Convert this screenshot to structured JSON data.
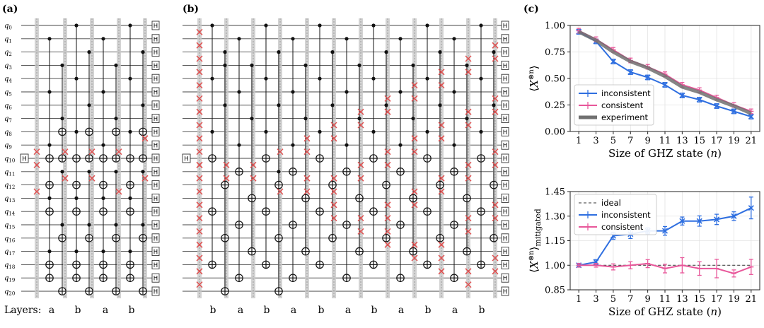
{
  "panels": {
    "a_label": "(a)",
    "b_label": "(b)",
    "c_label": "(c)"
  },
  "qubit_labels": [
    "q0",
    "q1",
    "q2",
    "q3",
    "q4",
    "q5",
    "q6",
    "q7",
    "q8",
    "q9",
    "q10",
    "q11",
    "q12",
    "q13",
    "q14",
    "q15",
    "q16",
    "q17",
    "q18",
    "q19",
    "q20"
  ],
  "gate_H": "H",
  "layers_label": "Layers:",
  "circuit_a": {
    "layers": [
      "a",
      "b",
      "a",
      "b"
    ],
    "cnots": [
      [
        [
          1,
          10
        ],
        [
          3,
          8
        ],
        [
          5,
          12
        ],
        [
          7,
          10
        ],
        [
          9,
          14
        ],
        [
          11,
          16
        ],
        [
          13,
          18
        ],
        [
          15,
          20
        ],
        [
          17,
          19
        ]
      ],
      [
        [
          0,
          10
        ],
        [
          2,
          8
        ],
        [
          4,
          12
        ],
        [
          6,
          10
        ],
        [
          8,
          14
        ],
        [
          11,
          16
        ],
        [
          13,
          18
        ],
        [
          15,
          20
        ],
        [
          17,
          19
        ]
      ],
      [
        [
          1,
          10
        ],
        [
          3,
          8
        ],
        [
          5,
          12
        ],
        [
          7,
          10
        ],
        [
          9,
          14
        ],
        [
          11,
          16
        ],
        [
          13,
          18
        ],
        [
          15,
          20
        ],
        [
          17,
          19
        ]
      ],
      [
        [
          0,
          10
        ],
        [
          2,
          8
        ],
        [
          4,
          12
        ],
        [
          6,
          10
        ],
        [
          8,
          14
        ],
        [
          11,
          16
        ],
        [
          13,
          18
        ],
        [
          15,
          20
        ],
        [
          17,
          19
        ]
      ]
    ],
    "swaps": [
      [
        10
      ],
      [
        9,
        11
      ],
      [
        9,
        11
      ],
      [
        9,
        12
      ],
      [
        8,
        11
      ],
      [
        9,
        12
      ]
    ]
  },
  "circuit_b": {
    "layers": [
      "b",
      "a",
      "b",
      "a",
      "b",
      "a",
      "b",
      "a",
      "b",
      "a",
      "b"
    ],
    "cnots": [
      [
        [
          0,
          10
        ],
        [
          2,
          12
        ],
        [
          4,
          14
        ],
        [
          6,
          16
        ],
        [
          8,
          18
        ],
        [
          3,
          20
        ]
      ],
      [
        [
          1,
          11
        ],
        [
          3,
          13
        ],
        [
          5,
          15
        ],
        [
          7,
          17
        ],
        [
          9,
          19
        ]
      ],
      [
        [
          0,
          10
        ],
        [
          2,
          12
        ],
        [
          4,
          14
        ],
        [
          6,
          16
        ],
        [
          8,
          18
        ],
        [
          11,
          20
        ]
      ],
      [
        [
          1,
          11
        ],
        [
          3,
          13
        ],
        [
          5,
          15
        ],
        [
          7,
          17
        ],
        [
          9,
          19
        ]
      ],
      [
        [
          0,
          10
        ],
        [
          2,
          12
        ],
        [
          4,
          14
        ],
        [
          6,
          16
        ],
        [
          8,
          18
        ]
      ],
      [
        [
          1,
          11
        ],
        [
          3,
          13
        ],
        [
          5,
          15
        ],
        [
          7,
          17
        ],
        [
          9,
          19
        ]
      ],
      [
        [
          0,
          10
        ],
        [
          2,
          12
        ],
        [
          4,
          14
        ],
        [
          6,
          16
        ],
        [
          8,
          18
        ]
      ],
      [
        [
          1,
          11
        ],
        [
          3,
          13
        ],
        [
          5,
          15
        ],
        [
          7,
          17
        ],
        [
          9,
          19
        ]
      ],
      [
        [
          0,
          10
        ],
        [
          2,
          12
        ],
        [
          4,
          14
        ],
        [
          6,
          16
        ],
        [
          8,
          18
        ]
      ],
      [
        [
          1,
          11
        ],
        [
          3,
          13
        ],
        [
          5,
          15
        ],
        [
          7,
          17
        ],
        [
          9,
          19
        ]
      ],
      [
        [
          0,
          10
        ],
        [
          2,
          12
        ],
        [
          4,
          14
        ],
        [
          6,
          16
        ],
        [
          8,
          18
        ]
      ]
    ],
    "swaps": [
      [
        10
      ],
      [
        10,
        11
      ],
      [
        10,
        11
      ],
      [
        9,
        12
      ],
      [
        8,
        9,
        11,
        12
      ],
      [
        7,
        8,
        11,
        12,
        13,
        14
      ],
      [
        6,
        7,
        10,
        11,
        14,
        15
      ],
      [
        5,
        6,
        9,
        10,
        13,
        14,
        15,
        16
      ],
      [
        4,
        5,
        8,
        9,
        12,
        13,
        16,
        17
      ],
      [
        3,
        4,
        7,
        8,
        11,
        12,
        16,
        17,
        18
      ],
      [
        2,
        3,
        6,
        7,
        10,
        11,
        14,
        15,
        18,
        19
      ],
      [
        1,
        2,
        5,
        6,
        9,
        10,
        13,
        14,
        17,
        18
      ],
      [
        0,
        1,
        2,
        3,
        4,
        5,
        6,
        7,
        8,
        9,
        10,
        11,
        12,
        13,
        14,
        15,
        16,
        17,
        18,
        19
      ]
    ]
  },
  "colors": {
    "inconsistent": "#2f6fe0",
    "consistent": "#e8579a",
    "experiment": "#707070",
    "swap": "#e05050",
    "barrier": "#c8c8c8"
  },
  "chart_data": [
    {
      "type": "line",
      "xlabel": "Size of GHZ state (n)",
      "ylabel": "⟨X⊗n⟩",
      "x": [
        1,
        3,
        5,
        7,
        9,
        11,
        13,
        15,
        17,
        19,
        21
      ],
      "xlim": [
        0,
        22
      ],
      "ylim": [
        0.0,
        1.0
      ],
      "yticks": [
        "0.00",
        "0.25",
        "0.50",
        "0.75",
        "1.00"
      ],
      "xticks": [
        "1",
        "3",
        "5",
        "7",
        "9",
        "11",
        "13",
        "15",
        "17",
        "19",
        "21"
      ],
      "legend_position": "lower-left",
      "series": [
        {
          "name": "inconsistent",
          "values": [
            0.94,
            0.85,
            0.66,
            0.56,
            0.51,
            0.44,
            0.34,
            0.3,
            0.24,
            0.19,
            0.14
          ]
        },
        {
          "name": "consistent",
          "values": [
            0.95,
            0.87,
            0.77,
            0.67,
            0.61,
            0.54,
            0.44,
            0.39,
            0.32,
            0.25,
            0.19
          ]
        },
        {
          "name": "experiment",
          "values": [
            0.94,
            0.86,
            0.75,
            0.66,
            0.6,
            0.52,
            0.42,
            0.37,
            0.3,
            0.24,
            0.17
          ]
        }
      ]
    },
    {
      "type": "line",
      "xlabel": "Size of GHZ state (n)",
      "ylabel": "⟨X⊗n⟩mitigated",
      "x": [
        1,
        3,
        5,
        7,
        9,
        11,
        13,
        15,
        17,
        19,
        21
      ],
      "xlim": [
        0,
        22
      ],
      "ylim": [
        0.85,
        1.45
      ],
      "yticks": [
        "0.85",
        "1.00",
        "1.15",
        "1.30",
        "1.45"
      ],
      "xticks": [
        "1",
        "3",
        "5",
        "7",
        "9",
        "11",
        "13",
        "15",
        "17",
        "19",
        "21"
      ],
      "legend_position": "top-left",
      "series": [
        {
          "name": "ideal",
          "values": [
            1,
            1,
            1,
            1,
            1,
            1,
            1,
            1,
            1,
            1,
            1
          ]
        },
        {
          "name": "inconsistent",
          "values": [
            1.0,
            1.02,
            1.18,
            1.19,
            1.21,
            1.21,
            1.27,
            1.27,
            1.28,
            1.3,
            1.35
          ],
          "err": [
            0.005,
            0.008,
            0.015,
            0.02,
            0.012,
            0.02,
            0.018,
            0.025,
            0.025,
            0.02,
            0.06
          ]
        },
        {
          "name": "consistent",
          "values": [
            1.0,
            1.0,
            0.99,
            1.0,
            1.01,
            0.98,
            1.0,
            0.98,
            0.98,
            0.95,
            0.99
          ],
          "err": [
            0.005,
            0.005,
            0.012,
            0.015,
            0.018,
            0.02,
            0.04,
            0.035,
            0.05,
            0.015,
            0.04
          ]
        }
      ]
    }
  ]
}
